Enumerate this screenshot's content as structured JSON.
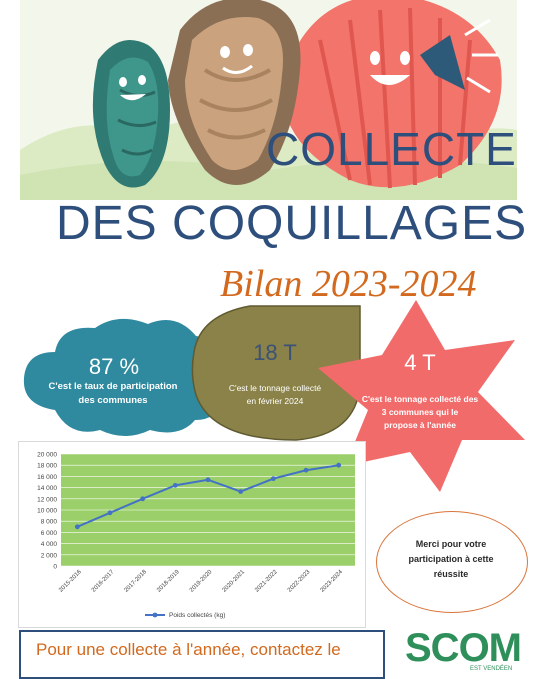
{
  "title": {
    "line1": "COLLECTE",
    "line2": "DES COQUILLAGES"
  },
  "subtitle": "Bilan 2023-2024",
  "stats": [
    {
      "value": "87 %",
      "caption_line1": "C'est le taux de participation",
      "caption_line2": "des communes"
    },
    {
      "value": "18 T",
      "caption_line1": "C'est le tonnage collecté",
      "caption_line2": "en février 2024"
    },
    {
      "value": "4 T",
      "caption_line1": "C'est le tonnage collecté des",
      "caption_line2": "3 communes qui le",
      "caption_line3": "propose à l'année"
    }
  ],
  "colors": {
    "title": "#2e4f7c",
    "accent": "#d2691e",
    "cloud": "#2f8aa0",
    "drop": "#8a8248",
    "star": "#f26b6b",
    "plot_bg": "#9bcf6a",
    "line": "#4472c4",
    "logo": "#2f8f5b"
  },
  "chart_data": {
    "type": "line",
    "categories": [
      "2015-2016",
      "2016-2017",
      "2017-2018",
      "2018-2019",
      "2019-2020",
      "2020-2021",
      "2021-2022",
      "2022-2023",
      "2023-2024"
    ],
    "series": [
      {
        "name": "Poids collectés (kg)",
        "values": [
          7000,
          9500,
          12000,
          14400,
          15400,
          13300,
          15600,
          17100,
          18000
        ]
      }
    ],
    "yticks": [
      "0",
      "2 000",
      "4 000",
      "6 000",
      "8 000",
      "10 000",
      "12 000",
      "14 000",
      "16 000",
      "18 000",
      "20 000"
    ],
    "ylim": [
      0,
      20000
    ],
    "grid": true,
    "legend": "bottom"
  },
  "merci": {
    "line1": "Merci pour votre",
    "line2": "participation à cette",
    "line3": "réussite"
  },
  "contact": {
    "text": "Pour une collecte à l'année, contactez le"
  },
  "logo": {
    "text": "SCOM",
    "sub": "EST VENDÉEN"
  }
}
